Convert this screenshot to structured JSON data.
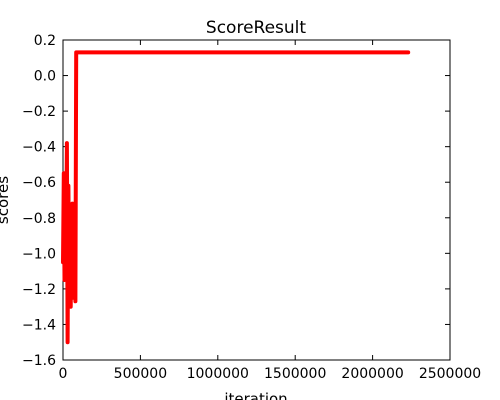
{
  "chart_data": {
    "type": "line",
    "title": "ScoreResult",
    "xlabel": "iteration",
    "ylabel": "scores",
    "xlim": [
      0,
      2500000
    ],
    "ylim": [
      -1.6,
      0.2
    ],
    "x_ticks": [
      0,
      500000,
      1000000,
      1500000,
      2000000,
      2500000
    ],
    "x_tick_labels": [
      "0",
      "500000",
      "1000000",
      "1500000",
      "2000000",
      "2500000"
    ],
    "y_ticks": [
      -1.6,
      -1.4,
      -1.2,
      -1.0,
      -0.8,
      -0.6,
      -0.4,
      -0.2,
      0.0,
      0.2
    ],
    "y_tick_labels": [
      "−1.6",
      "−1.4",
      "−1.2",
      "−1.0",
      "−0.8",
      "−0.6",
      "−0.4",
      "−0.2",
      "0.0",
      "0.2"
    ],
    "grid": false,
    "series": [
      {
        "color": "#ff0000",
        "x": [
          0,
          5000,
          10000,
          15000,
          20000,
          25000,
          30000,
          35000,
          40000,
          45000,
          50000,
          55000,
          60000,
          65000,
          70000,
          75000,
          80000,
          85000,
          90000,
          100000,
          150000,
          500000,
          1000000,
          1500000,
          2000000,
          2230000
        ],
        "y": [
          -1.05,
          -0.55,
          -1.15,
          -0.7,
          -1.0,
          -0.38,
          -1.5,
          -0.62,
          -1.2,
          -0.85,
          -1.3,
          -0.9,
          -0.72,
          -1.25,
          -0.95,
          -0.72,
          -1.27,
          0.13,
          0.13,
          0.13,
          0.13,
          0.13,
          0.13,
          0.13,
          0.13,
          0.13
        ]
      }
    ]
  }
}
